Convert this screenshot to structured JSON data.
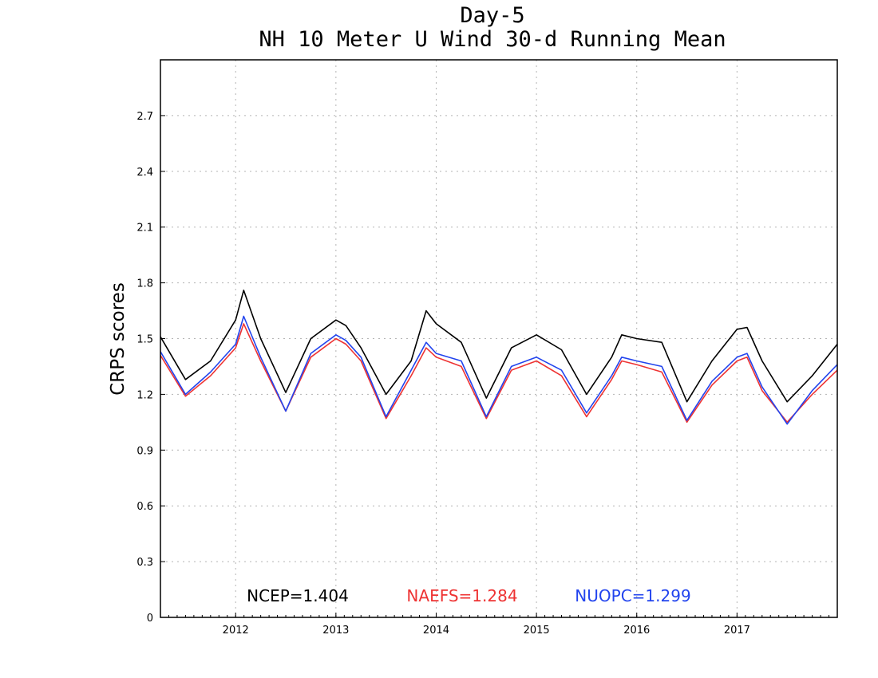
{
  "chart_data": {
    "type": "line",
    "title": "Day-5",
    "subtitle": "NH 10 Meter U Wind 30-d Running Mean",
    "xlabel": "",
    "ylabel": "CRPS scores",
    "xlim": [
      2011.25,
      2018.0
    ],
    "ylim": [
      0,
      3.0
    ],
    "x_ticks": [
      2012,
      2013,
      2014,
      2015,
      2016,
      2017
    ],
    "x_tick_labels": [
      "2012",
      "2013",
      "2014",
      "2015",
      "2016",
      "2017"
    ],
    "y_ticks": [
      0,
      0.3,
      0.6,
      0.9,
      1.2,
      1.5,
      1.8,
      2.1,
      2.4,
      2.7
    ],
    "y_tick_labels": [
      "0",
      "0.3",
      "0.6",
      "0.9",
      "1.2",
      "1.5",
      "1.8",
      "2.1",
      "2.4",
      "2.7"
    ],
    "grid": true,
    "legend_placement": "bottom-inside",
    "x": [
      2011.25,
      2011.5,
      2011.75,
      2012.0,
      2012.08,
      2012.25,
      2012.5,
      2012.75,
      2013.0,
      2013.1,
      2013.25,
      2013.5,
      2013.75,
      2013.9,
      2014.0,
      2014.25,
      2014.5,
      2014.75,
      2015.0,
      2015.25,
      2015.5,
      2015.75,
      2015.85,
      2016.0,
      2016.25,
      2016.5,
      2016.75,
      2017.0,
      2017.1,
      2017.25,
      2017.5,
      2017.75,
      2018.0
    ],
    "series": [
      {
        "name": "NCEP",
        "color": "#000000",
        "mean_label": "NCEP=1.404",
        "values": [
          1.51,
          1.28,
          1.38,
          1.6,
          1.76,
          1.5,
          1.21,
          1.5,
          1.6,
          1.57,
          1.45,
          1.2,
          1.38,
          1.65,
          1.58,
          1.48,
          1.18,
          1.45,
          1.52,
          1.44,
          1.2,
          1.4,
          1.52,
          1.5,
          1.48,
          1.16,
          1.38,
          1.55,
          1.56,
          1.38,
          1.16,
          1.3,
          1.47
        ]
      },
      {
        "name": "NAEFS",
        "color": "#ee3333",
        "mean_label": "NAEFS=1.284",
        "values": [
          1.41,
          1.19,
          1.3,
          1.45,
          1.58,
          1.38,
          1.11,
          1.4,
          1.5,
          1.47,
          1.38,
          1.07,
          1.3,
          1.45,
          1.4,
          1.35,
          1.07,
          1.33,
          1.38,
          1.3,
          1.08,
          1.28,
          1.38,
          1.36,
          1.32,
          1.05,
          1.25,
          1.38,
          1.4,
          1.22,
          1.05,
          1.2,
          1.33
        ]
      },
      {
        "name": "NUOPC",
        "color": "#2244ee",
        "mean_label": "NUOPC=1.299",
        "values": [
          1.43,
          1.2,
          1.32,
          1.47,
          1.62,
          1.4,
          1.11,
          1.42,
          1.52,
          1.49,
          1.4,
          1.08,
          1.33,
          1.48,
          1.42,
          1.38,
          1.08,
          1.35,
          1.4,
          1.33,
          1.1,
          1.3,
          1.4,
          1.38,
          1.35,
          1.06,
          1.27,
          1.4,
          1.42,
          1.24,
          1.04,
          1.22,
          1.36
        ]
      }
    ]
  }
}
